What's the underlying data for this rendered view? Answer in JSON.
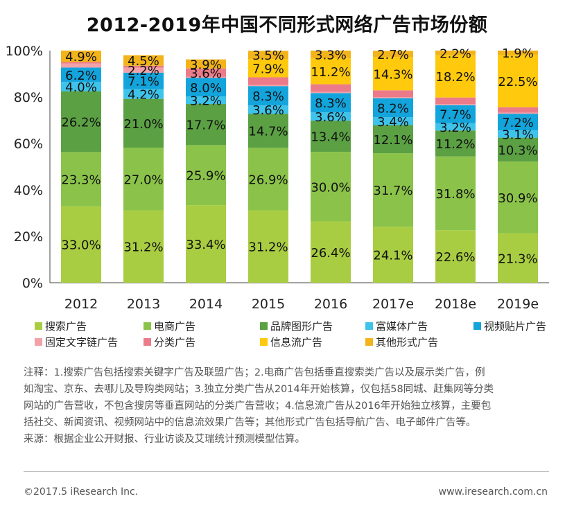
{
  "chart_data": {
    "type": "bar",
    "stacked": true,
    "title": "2012-2019年中国不同形式网络广告市场份额",
    "categories": [
      "2012",
      "2013",
      "2014",
      "2015",
      "2016",
      "2017e",
      "2018e",
      "2019e"
    ],
    "ylim": [
      0,
      100
    ],
    "yticks": [
      "0%",
      "20%",
      "40%",
      "60%",
      "80%",
      "100%"
    ],
    "series": [
      {
        "name": "搜索广告",
        "color": "#a9cd42",
        "values": [
          33.0,
          31.2,
          33.4,
          31.2,
          26.4,
          24.1,
          22.6,
          21.3
        ],
        "labels": [
          "33.0%",
          "31.2%",
          "33.4%",
          "31.2%",
          "26.4%",
          "24.1%",
          "22.6%",
          "21.3%"
        ]
      },
      {
        "name": "电商广告",
        "color": "#8bc34a",
        "values": [
          23.3,
          27.0,
          25.9,
          26.9,
          30.0,
          31.7,
          31.8,
          30.9
        ],
        "labels": [
          "23.3%",
          "27.0%",
          "25.9%",
          "26.9%",
          "30.0%",
          "31.7%",
          "31.8%",
          "30.9%"
        ]
      },
      {
        "name": "品牌图形广告",
        "color": "#5ba043",
        "values": [
          26.2,
          21.0,
          17.7,
          14.7,
          13.4,
          12.1,
          11.2,
          10.3
        ],
        "labels": [
          "26.2%",
          "21.0%",
          "17.7%",
          "14.7%",
          "13.4%",
          "12.1%",
          "11.2%",
          "10.3%"
        ]
      },
      {
        "name": "富媒体广告",
        "color": "#3ec3ea",
        "values": [
          4.0,
          4.2,
          3.2,
          3.6,
          3.6,
          3.4,
          3.2,
          3.1
        ],
        "labels": [
          "4.0%",
          "4.2%",
          "3.2%",
          "3.6%",
          "3.6%",
          "3.4%",
          "3.2%",
          "3.1%"
        ]
      },
      {
        "name": "视频贴片广告",
        "color": "#13a4dc",
        "values": [
          6.2,
          7.1,
          8.0,
          8.3,
          8.3,
          8.2,
          7.7,
          7.2
        ],
        "labels": [
          "6.2%",
          "7.1%",
          "8.0%",
          "8.3%",
          "8.3%",
          "8.2%",
          "7.7%",
          "7.2%"
        ]
      },
      {
        "name": "固定文字链广告",
        "color": "#f2a1a8",
        "values": [
          1.7,
          2.2,
          0.5,
          0.5,
          0.5,
          0.5,
          0.5,
          0.5
        ],
        "labels": [
          "",
          "2.2%",
          "",
          "",
          "",
          "",
          "",
          ""
        ]
      },
      {
        "name": "分类广告",
        "color": "#ec7b89",
        "values": [
          0.7,
          0.8,
          3.6,
          3.3,
          3.3,
          2.9,
          2.8,
          2.3
        ],
        "labels": [
          "",
          "",
          "3.6%",
          "",
          "",
          "",
          "",
          ""
        ]
      },
      {
        "name": "信息流广告",
        "color": "#ffc90e",
        "values": [
          0.0,
          0.0,
          0.0,
          7.9,
          11.2,
          14.3,
          18.2,
          22.5
        ],
        "labels": [
          "",
          "",
          "",
          "7.9%",
          "11.2%",
          "14.3%",
          "18.2%",
          "22.5%"
        ]
      },
      {
        "name": "其他形式广告",
        "color": "#f3b41b",
        "values": [
          4.9,
          4.5,
          3.9,
          3.5,
          3.3,
          2.7,
          2.2,
          1.9
        ],
        "labels": [
          "4.9%",
          "4.5%",
          "3.9%",
          "3.5%",
          "3.3%",
          "2.7%",
          "2.2%",
          "1.9%"
        ]
      }
    ]
  },
  "notes": [
    "注释：1.搜索广告包括搜索关键字广告及联盟广告；2.电商广告包括垂直搜索类广告以及展示类广告，例",
    "如淘宝、京东、去哪儿及导购类网站；3.独立分类广告从2014年开始核算，仅包括58同城、赶集网等分类",
    "网站的广告营收，不包含搜房等垂直网站的分类广告营收；4.信息流广告从2016年开始独立核算，主要包",
    "括社交、新闻资讯、视频网站中的信息流效果广告等；其他形式广告包括导航广告、电子邮件广告等。",
    "来源：根据企业公开财报、行业访谈及艾瑞统计预测模型估算。"
  ],
  "footer": {
    "copyright": "©2017.5 iResearch Inc.",
    "website": "www.iresearch.com.cn"
  }
}
